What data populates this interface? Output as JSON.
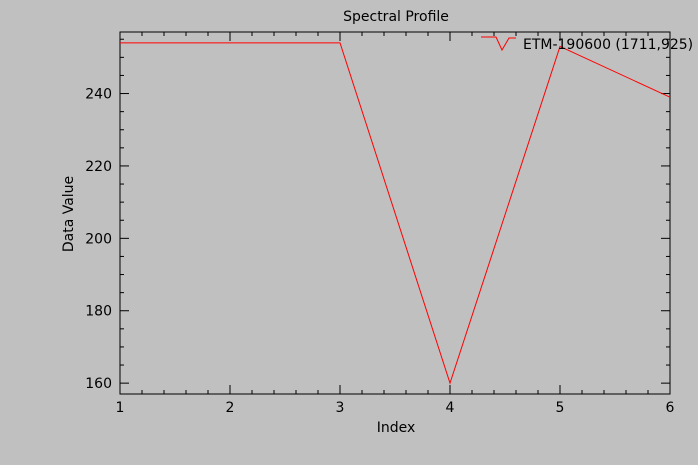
{
  "chart_data": {
    "type": "line",
    "title": "Spectral Profile",
    "xlabel": "Index",
    "ylabel": "Data Value",
    "x": [
      1,
      2,
      3,
      4,
      5,
      6
    ],
    "xlim": [
      1,
      6
    ],
    "ylim": [
      157,
      257
    ],
    "x_ticks": [
      1,
      2,
      3,
      4,
      5,
      6
    ],
    "y_ticks": [
      160,
      180,
      200,
      220,
      240
    ],
    "grid": false,
    "legend_position": "top-right",
    "series": [
      {
        "name": "ETM-190600 (1711,925)",
        "color": "#ff0000",
        "values": [
          254,
          254,
          254,
          160,
          253,
          239
        ]
      }
    ]
  },
  "colors": {
    "background": "#c0c0c0",
    "axes": "#000000",
    "series": "#ff0000"
  }
}
